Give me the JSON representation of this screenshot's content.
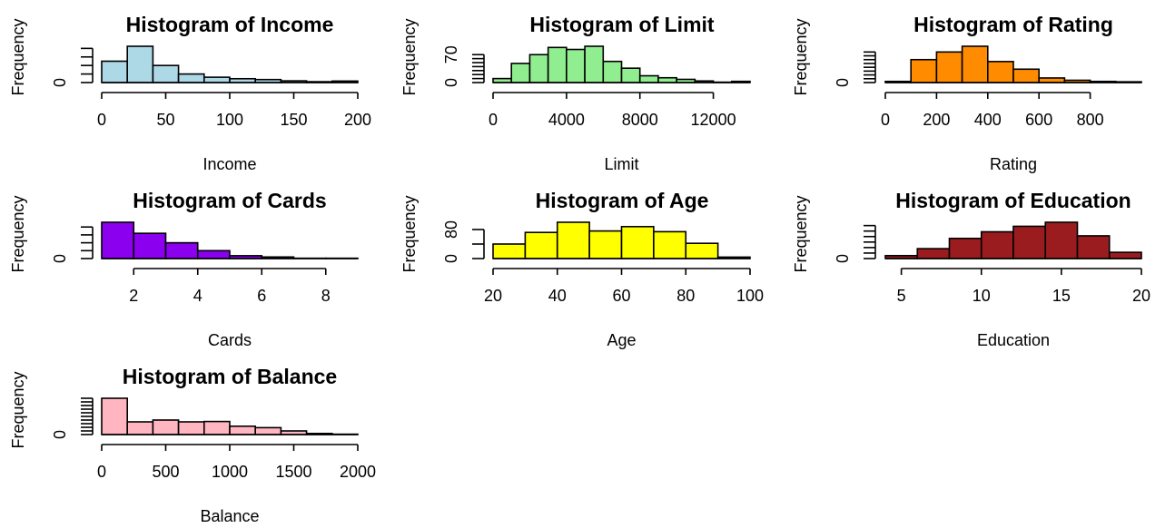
{
  "chart_data": [
    {
      "type": "histogram",
      "title": "Histogram of Income",
      "xlabel": "Income",
      "ylabel": "Frequency",
      "color": "#ADD8E6",
      "bin_edges": [
        0,
        20,
        40,
        60,
        80,
        100,
        120,
        140,
        160,
        180,
        200
      ],
      "counts": [
        100,
        170,
        80,
        40,
        25,
        18,
        14,
        8,
        4,
        7
      ],
      "xticks": [
        0,
        50,
        100,
        150,
        200
      ],
      "xtick_labels": [
        "0",
        "50",
        "100",
        "150",
        "200"
      ],
      "xlim": [
        0,
        200
      ],
      "ylim": [
        0,
        170
      ],
      "ytick_minor": [
        0,
        40,
        80,
        120,
        160
      ],
      "ytick_labels": [
        {
          "value": 0,
          "label": "0"
        }
      ]
    },
    {
      "type": "histogram",
      "title": "Histogram of Limit",
      "xlabel": "Limit",
      "ylabel": "Frequency",
      "color": "#90EE90",
      "bin_edges": [
        0,
        1000,
        2000,
        3000,
        4000,
        5000,
        6000,
        7000,
        8000,
        9000,
        10000,
        11000,
        12000,
        13000,
        14000
      ],
      "counts": [
        10,
        48,
        70,
        88,
        83,
        91,
        53,
        36,
        17,
        12,
        8,
        4,
        1,
        3
      ],
      "xticks": [
        0,
        4000,
        8000,
        12000
      ],
      "xtick_labels": [
        "0",
        "4000",
        "8000",
        "12000"
      ],
      "xlim": [
        0,
        14000
      ],
      "ylim": [
        0,
        91
      ],
      "ytick_minor": [
        0,
        10,
        20,
        30,
        40,
        50,
        60,
        70
      ],
      "ytick_labels": [
        {
          "value": 0,
          "label": "0"
        },
        {
          "value": 70,
          "label": "70"
        }
      ]
    },
    {
      "type": "histogram",
      "title": "Histogram of Rating",
      "xlabel": "Rating",
      "ylabel": "Frequency",
      "color": "#FF8C00",
      "bin_edges": [
        0,
        100,
        200,
        300,
        400,
        500,
        600,
        700,
        800,
        900,
        1000
      ],
      "counts": [
        3,
        60,
        80,
        95,
        55,
        35,
        12,
        6,
        3,
        2
      ],
      "xticks": [
        0,
        200,
        400,
        600,
        800
      ],
      "xtick_labels": [
        "0",
        "200",
        "400",
        "600",
        "800"
      ],
      "xlim": [
        0,
        1000
      ],
      "ylim": [
        0,
        95
      ],
      "ytick_minor": [
        0,
        10,
        20,
        30,
        40,
        50,
        60,
        70,
        80
      ],
      "ytick_labels": [
        {
          "value": 0,
          "label": "0"
        }
      ]
    },
    {
      "type": "histogram",
      "title": "Histogram of Cards",
      "xlabel": "Cards",
      "ylabel": "Frequency",
      "color": "#8B00EE",
      "bin_edges": [
        1,
        2,
        3,
        4,
        5,
        6,
        7,
        8,
        9
      ],
      "counts": [
        115,
        80,
        50,
        25,
        9,
        5,
        1,
        1
      ],
      "xticks": [
        2,
        4,
        6,
        8
      ],
      "xtick_labels": [
        "2",
        "4",
        "6",
        "8"
      ],
      "xlim": [
        1,
        9
      ],
      "ylim": [
        0,
        115
      ],
      "ytick_minor": [
        0,
        25,
        50,
        75,
        100
      ],
      "ytick_labels": [
        {
          "value": 0,
          "label": "0"
        }
      ]
    },
    {
      "type": "histogram",
      "title": "Histogram of Age",
      "xlabel": "Age",
      "ylabel": "Frequency",
      "color": "#FFFF00",
      "bin_edges": [
        20,
        30,
        40,
        50,
        60,
        70,
        80,
        90,
        100
      ],
      "counts": [
        40,
        72,
        100,
        76,
        88,
        74,
        42,
        4
      ],
      "xticks": [
        20,
        40,
        60,
        80,
        100
      ],
      "xtick_labels": [
        "20",
        "40",
        "60",
        "80",
        "100"
      ],
      "xlim": [
        20,
        100
      ],
      "ylim": [
        0,
        100
      ],
      "ytick_minor": [
        0,
        40,
        80
      ],
      "ytick_labels": [
        {
          "value": 0,
          "label": "0"
        },
        {
          "value": 80,
          "label": "80"
        }
      ]
    },
    {
      "type": "histogram",
      "title": "Histogram of Education",
      "xlabel": "Education",
      "ylabel": "Frequency",
      "color": "#9B1C1F",
      "bin_edges": [
        4,
        6,
        8,
        10,
        12,
        14,
        16,
        18,
        20
      ],
      "counts": [
        8,
        27,
        55,
        73,
        88,
        99,
        62,
        17
      ],
      "xticks": [
        5,
        10,
        15,
        20
      ],
      "xtick_labels": [
        "5",
        "10",
        "15",
        "20"
      ],
      "xlim": [
        4,
        20
      ],
      "ylim": [
        0,
        99
      ],
      "ytick_minor": [
        0,
        15,
        30,
        45,
        60,
        75,
        90
      ],
      "ytick_labels": [
        {
          "value": 0,
          "label": "0"
        }
      ]
    },
    {
      "type": "histogram",
      "title": "Histogram of Balance",
      "xlabel": "Balance",
      "ylabel": "Frequency",
      "color": "#FFB6C1",
      "bin_edges": [
        0,
        200,
        400,
        600,
        800,
        1000,
        1200,
        1400,
        1600,
        1800,
        2000
      ],
      "counts": [
        100,
        35,
        40,
        35,
        36,
        23,
        19,
        10,
        3,
        1
      ],
      "xticks": [
        0,
        500,
        1000,
        1500,
        2000
      ],
      "xtick_labels": [
        "0",
        "500",
        "1000",
        "1500",
        "2000"
      ],
      "xlim": [
        0,
        2000
      ],
      "ylim": [
        0,
        100
      ],
      "ytick_minor": [
        0,
        10,
        20,
        30,
        40,
        50,
        60,
        70,
        80,
        90,
        100
      ],
      "ytick_labels": [
        {
          "value": 0,
          "label": "0"
        }
      ]
    }
  ]
}
